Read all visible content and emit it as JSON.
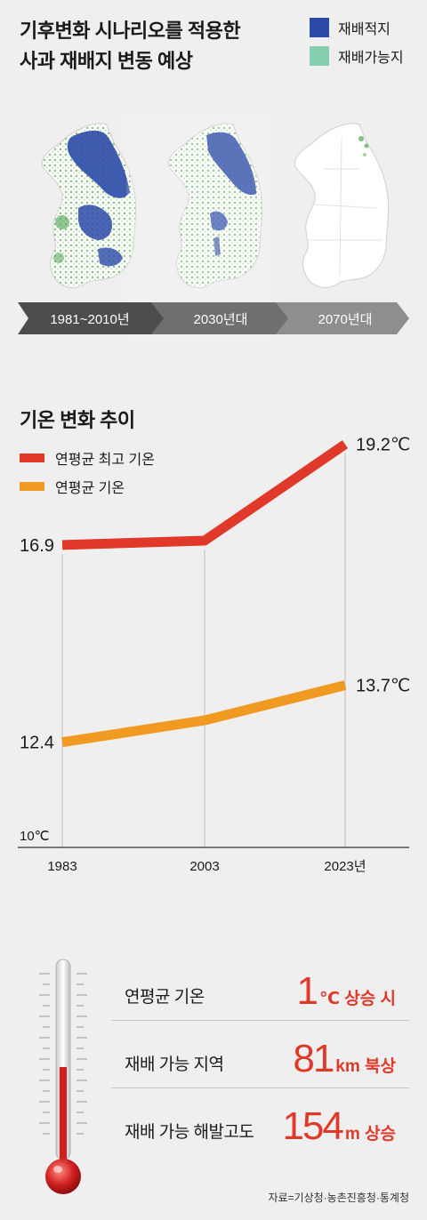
{
  "map_section": {
    "title": "기후변화 시나리오를 적용한\n사과 재배지 변동 예상",
    "legend": [
      {
        "label": "재배적지",
        "color": "#2b4aa8"
      },
      {
        "label": "재배가능지",
        "color": "#86cfae"
      }
    ],
    "periods": [
      "1981~2010년",
      "2030년대",
      "2070년대"
    ]
  },
  "chart_data": {
    "type": "line",
    "title": "기온 변화 추이",
    "x": [
      "1983",
      "2003",
      "2023년"
    ],
    "series": [
      {
        "name": "연평균 최고 기온",
        "values": [
          16.9,
          17.0,
          19.2
        ],
        "color": "#e0392a"
      },
      {
        "name": "연평균 기온",
        "values": [
          12.4,
          12.9,
          13.7
        ],
        "color": "#f09a22"
      }
    ],
    "data_labels": {
      "start_high": "16.9",
      "end_high": "19.2℃",
      "start_avg": "12.4",
      "end_avg": "13.7℃"
    },
    "ylabel_baseline": "10℃",
    "ylim": [
      10,
      19.8
    ],
    "grid": "vertical lines at each x"
  },
  "stats": [
    {
      "label": "연평균 기온",
      "value": "1",
      "unit": "℃ 상승 시"
    },
    {
      "label": "재배 가능 지역",
      "value": "81",
      "unit": "km 북상"
    },
    {
      "label": "재배 가능 해발고도",
      "value": "154",
      "unit": "m 상승"
    }
  ],
  "source": "자료=기상청·농촌진흥청·통계청"
}
